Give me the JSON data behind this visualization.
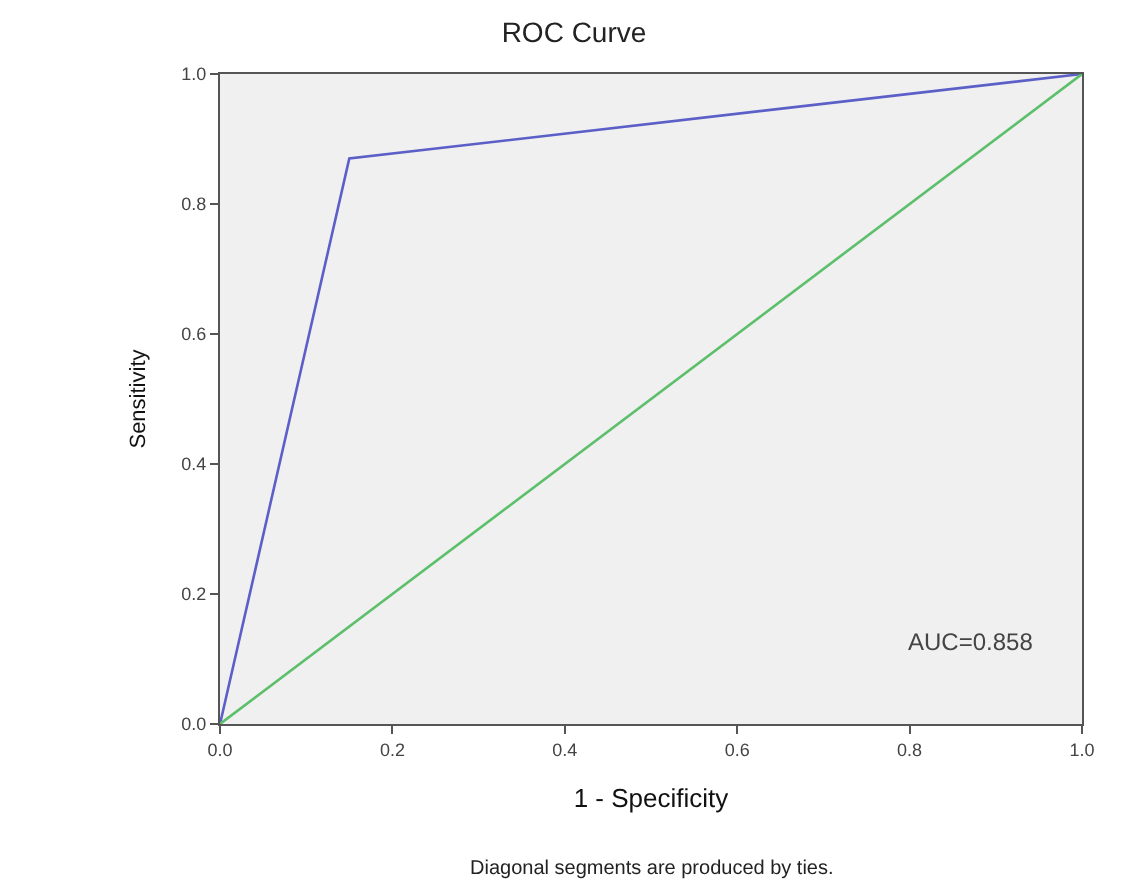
{
  "chart_data": {
    "type": "line",
    "title": "ROC Curve",
    "xlabel": "1 - Specificity",
    "ylabel": "Sensitivity",
    "series": [
      {
        "color": "#5b5fc7",
        "x": [
          0,
          0.15,
          1
        ],
        "values": [
          0,
          0.87,
          1
        ]
      },
      {
        "color": "#5cbf6a",
        "x": [
          0,
          1
        ],
        "values": [
          0,
          1
        ]
      }
    ],
    "xlim": [
      0,
      1
    ],
    "ylim": [
      0,
      1
    ],
    "xticks": [
      {
        "value": 0,
        "label": "0.0"
      },
      0.2,
      0.4,
      0.6,
      0.8,
      {
        "value": 1,
        "label": "1.0"
      }
    ],
    "yticks": [
      {
        "value": 0,
        "label": "0.0"
      },
      0.2,
      0.4,
      0.6,
      0.8,
      {
        "value": 1,
        "label": "1.0"
      }
    ],
    "annotations": [
      "AUC=0.858",
      "Diagonal segments are produced by ties."
    ],
    "grid": false,
    "marker": "none",
    "line_style": "solid"
  }
}
